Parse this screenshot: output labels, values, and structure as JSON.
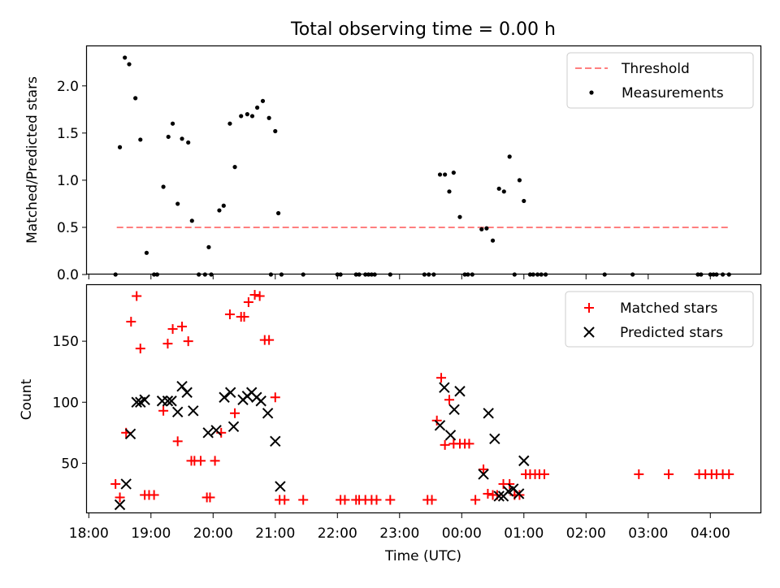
{
  "title": "Total observing time = 0.00 h",
  "colors": {
    "threshold": "#ff7f7f",
    "measurements": "#000000",
    "matched": "#ff0000",
    "predicted": "#000000"
  },
  "chart_data": [
    {
      "type": "scatter",
      "ylabel": "Matched/Predicted stars",
      "xlim_hours": [
        17.97,
        28.82
      ],
      "ylim": [
        0,
        2.42
      ],
      "yticks": [
        "0.0",
        "0.5",
        "1.0",
        "1.5",
        "2.0"
      ],
      "legend_position": "upper right",
      "threshold": {
        "name": "Threshold",
        "value": 0.5,
        "x_range_hours": [
          18.45,
          28.3
        ]
      },
      "series": [
        {
          "name": "Measurements",
          "marker": "dot",
          "x_hours": [
            18.43,
            18.5,
            18.58,
            18.65,
            18.75,
            18.83,
            18.93,
            19.05,
            19.1,
            19.2,
            19.28,
            19.35,
            19.43,
            19.5,
            19.6,
            19.66,
            19.77,
            19.87,
            19.93,
            19.97,
            20.1,
            20.17,
            20.27,
            20.35,
            20.45,
            20.55,
            20.63,
            20.71,
            20.8,
            20.9,
            20.93,
            21.0,
            21.05,
            21.1,
            21.45,
            22.0,
            22.05,
            22.3,
            22.35,
            22.45,
            22.5,
            22.55,
            22.6,
            22.85,
            23.4,
            23.47,
            23.55,
            23.65,
            23.73,
            23.8,
            23.87,
            23.97,
            24.05,
            24.1,
            24.17,
            24.32,
            24.4,
            24.5,
            24.6,
            24.68,
            24.77,
            24.85,
            24.93,
            25.0,
            25.1,
            25.15,
            25.22,
            25.28,
            25.35,
            26.3,
            26.75,
            27.8,
            27.85,
            28.0,
            28.05,
            28.1,
            28.2,
            28.3
          ],
          "y": [
            0.0,
            1.35,
            2.3,
            2.23,
            1.87,
            1.43,
            0.23,
            0.0,
            0.0,
            0.93,
            1.46,
            1.6,
            0.75,
            1.44,
            1.4,
            0.57,
            0.0,
            0.0,
            0.29,
            0.0,
            0.68,
            0.73,
            1.6,
            1.14,
            1.68,
            1.7,
            1.68,
            1.77,
            1.84,
            1.66,
            0.0,
            1.52,
            0.65,
            0.0,
            0.0,
            0.0,
            0.0,
            0.0,
            0.0,
            0.0,
            0.0,
            0.0,
            0.0,
            0.0,
            0.0,
            0.0,
            0.0,
            1.06,
            1.06,
            0.88,
            1.08,
            0.61,
            0.0,
            0.0,
            0.0,
            0.48,
            0.49,
            0.36,
            0.91,
            0.88,
            1.25,
            0.0,
            1.0,
            0.78,
            0.0,
            0.0,
            0.0,
            0.0,
            0.0,
            0.0,
            0.0,
            0.0,
            0.0,
            0.0,
            0.0,
            0.0,
            0.0,
            0.0
          ]
        }
      ]
    },
    {
      "type": "scatter",
      "xlabel": "Time (UTC)",
      "ylabel": "Count",
      "xlim_hours": [
        17.97,
        28.82
      ],
      "ylim": [
        9,
        196
      ],
      "yticks": [
        "50",
        "100",
        "150"
      ],
      "xtick_labels": [
        "18:00",
        "19:00",
        "20:00",
        "21:00",
        "22:00",
        "23:00",
        "00:00",
        "01:00",
        "02:00",
        "03:00",
        "04:00"
      ],
      "legend_position": "upper right",
      "series": [
        {
          "name": "Matched stars",
          "marker": "plus",
          "x_hours": [
            18.43,
            18.5,
            18.6,
            18.68,
            18.77,
            18.83,
            18.9,
            18.97,
            19.05,
            19.2,
            19.27,
            19.35,
            19.43,
            19.5,
            19.6,
            19.65,
            19.7,
            19.8,
            19.9,
            19.95,
            20.03,
            20.13,
            20.27,
            20.35,
            20.45,
            20.5,
            20.57,
            20.67,
            20.75,
            20.83,
            20.9,
            21.0,
            21.07,
            21.15,
            21.45,
            22.05,
            22.12,
            22.3,
            22.35,
            22.45,
            22.55,
            22.63,
            22.85,
            23.45,
            23.52,
            23.6,
            23.67,
            23.73,
            23.8,
            23.87,
            23.97,
            24.05,
            24.12,
            24.22,
            24.35,
            24.42,
            24.5,
            24.57,
            24.67,
            24.77,
            24.85,
            24.93,
            25.03,
            25.1,
            25.18,
            25.25,
            25.33,
            26.85,
            27.33,
            27.82,
            27.92,
            28.02,
            28.1,
            28.2,
            28.3
          ],
          "y": [
            33,
            22,
            75,
            166,
            187,
            144,
            24,
            24,
            24,
            93,
            148,
            160,
            68,
            162,
            150,
            52,
            52,
            52,
            22,
            22,
            52,
            75,
            172,
            91,
            170,
            170,
            182,
            188,
            187,
            151,
            151,
            104,
            20,
            20,
            20,
            20,
            20,
            20,
            20,
            20,
            20,
            20,
            20,
            20,
            20,
            85,
            120,
            65,
            102,
            66,
            66,
            66,
            66,
            20,
            45,
            25,
            24,
            24,
            33,
            33,
            24,
            24,
            41,
            41,
            41,
            41,
            41,
            41,
            41,
            41,
            41,
            41,
            41,
            41,
            41
          ]
        },
        {
          "name": "Predicted stars",
          "marker": "x",
          "x_hours": [
            18.5,
            18.6,
            18.67,
            18.77,
            18.83,
            18.9,
            19.18,
            19.27,
            19.33,
            19.43,
            19.5,
            19.58,
            19.68,
            19.92,
            20.05,
            20.18,
            20.28,
            20.33,
            20.48,
            20.55,
            20.62,
            20.7,
            20.77,
            20.88,
            21.0,
            21.08,
            23.65,
            23.72,
            23.82,
            23.88,
            23.97,
            24.35,
            24.43,
            24.53,
            24.6,
            24.67,
            24.75,
            24.83,
            24.92,
            25.0
          ],
          "y": [
            16,
            33,
            74,
            100,
            100,
            102,
            101,
            101,
            101,
            92,
            113,
            108,
            93,
            75,
            77,
            104,
            108,
            80,
            102,
            105,
            108,
            104,
            101,
            91,
            68,
            31,
            81,
            112,
            73,
            94,
            109,
            41,
            91,
            70,
            23,
            23,
            27,
            29,
            25,
            52
          ]
        }
      ]
    }
  ]
}
